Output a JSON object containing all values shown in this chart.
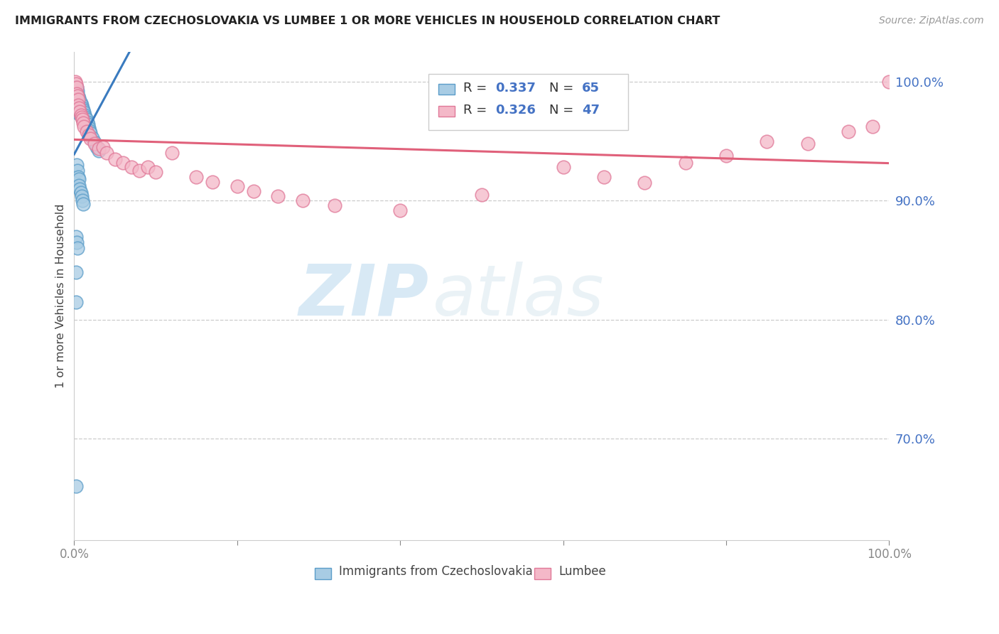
{
  "title": "IMMIGRANTS FROM CZECHOSLOVAKIA VS LUMBEE 1 OR MORE VEHICLES IN HOUSEHOLD CORRELATION CHART",
  "source": "Source: ZipAtlas.com",
  "ylabel": "1 or more Vehicles in Household",
  "right_yticks": [
    0.7,
    0.8,
    0.9,
    1.0
  ],
  "right_yticklabels": [
    "70.0%",
    "80.0%",
    "90.0%",
    "100.0%"
  ],
  "blue_label": "Immigrants from Czechoslovakia",
  "pink_label": "Lumbee",
  "blue_R": 0.337,
  "blue_N": 65,
  "pink_R": 0.326,
  "pink_N": 47,
  "blue_color": "#a8cce4",
  "pink_color": "#f4b8c8",
  "blue_edge_color": "#5b9dc9",
  "pink_edge_color": "#e07898",
  "blue_line_color": "#3a7bbf",
  "pink_line_color": "#e0607a",
  "watermark_zip": "ZIP",
  "watermark_atlas": "atlas",
  "xlim": [
    0.0,
    1.0
  ],
  "ylim": [
    0.615,
    1.025
  ],
  "blue_x": [
    0.001,
    0.002,
    0.002,
    0.002,
    0.003,
    0.003,
    0.003,
    0.003,
    0.004,
    0.004,
    0.004,
    0.005,
    0.005,
    0.005,
    0.005,
    0.006,
    0.006,
    0.006,
    0.006,
    0.007,
    0.007,
    0.007,
    0.008,
    0.008,
    0.008,
    0.009,
    0.009,
    0.009,
    0.01,
    0.01,
    0.01,
    0.011,
    0.011,
    0.012,
    0.012,
    0.013,
    0.013,
    0.014,
    0.014,
    0.015,
    0.015,
    0.016,
    0.017,
    0.018,
    0.019,
    0.02,
    0.022,
    0.025,
    0.028,
    0.03,
    0.003,
    0.004,
    0.005,
    0.006,
    0.006,
    0.007,
    0.008,
    0.009,
    0.01,
    0.011,
    0.002,
    0.003,
    0.004,
    0.002,
    0.002
  ],
  "blue_y": [
    0.995,
    0.99,
    0.985,
    0.66,
    0.995,
    0.99,
    0.985,
    0.98,
    0.992,
    0.987,
    0.982,
    0.988,
    0.984,
    0.98,
    0.975,
    0.986,
    0.982,
    0.978,
    0.973,
    0.984,
    0.98,
    0.975,
    0.982,
    0.978,
    0.973,
    0.98,
    0.976,
    0.971,
    0.978,
    0.974,
    0.969,
    0.976,
    0.972,
    0.974,
    0.969,
    0.972,
    0.967,
    0.97,
    0.965,
    0.968,
    0.963,
    0.966,
    0.964,
    0.961,
    0.959,
    0.957,
    0.953,
    0.949,
    0.945,
    0.942,
    0.93,
    0.925,
    0.92,
    0.918,
    0.913,
    0.91,
    0.907,
    0.904,
    0.9,
    0.897,
    0.87,
    0.865,
    0.86,
    0.84,
    0.815
  ],
  "pink_x": [
    0.001,
    0.002,
    0.003,
    0.003,
    0.004,
    0.005,
    0.005,
    0.006,
    0.007,
    0.008,
    0.009,
    0.01,
    0.011,
    0.012,
    0.015,
    0.018,
    0.02,
    0.025,
    0.03,
    0.035,
    0.04,
    0.05,
    0.06,
    0.07,
    0.08,
    0.09,
    0.1,
    0.12,
    0.15,
    0.17,
    0.2,
    0.22,
    0.25,
    0.28,
    0.32,
    0.4,
    0.5,
    0.6,
    0.65,
    0.7,
    0.75,
    0.8,
    0.85,
    0.9,
    0.95,
    0.98,
    1.0
  ],
  "pink_y": [
    1.0,
    0.998,
    0.995,
    0.99,
    0.988,
    0.985,
    0.98,
    0.978,
    0.975,
    0.972,
    0.97,
    0.968,
    0.965,
    0.962,
    0.958,
    0.955,
    0.952,
    0.948,
    0.944,
    0.945,
    0.94,
    0.935,
    0.932,
    0.928,
    0.925,
    0.928,
    0.924,
    0.94,
    0.92,
    0.916,
    0.912,
    0.908,
    0.904,
    0.9,
    0.896,
    0.892,
    0.905,
    0.928,
    0.92,
    0.915,
    0.932,
    0.938,
    0.95,
    0.948,
    0.958,
    0.962,
    1.0
  ],
  "xtick_positions": [
    0.0,
    1.0
  ],
  "xtick_labels": [
    "0.0%",
    "100.0%"
  ]
}
